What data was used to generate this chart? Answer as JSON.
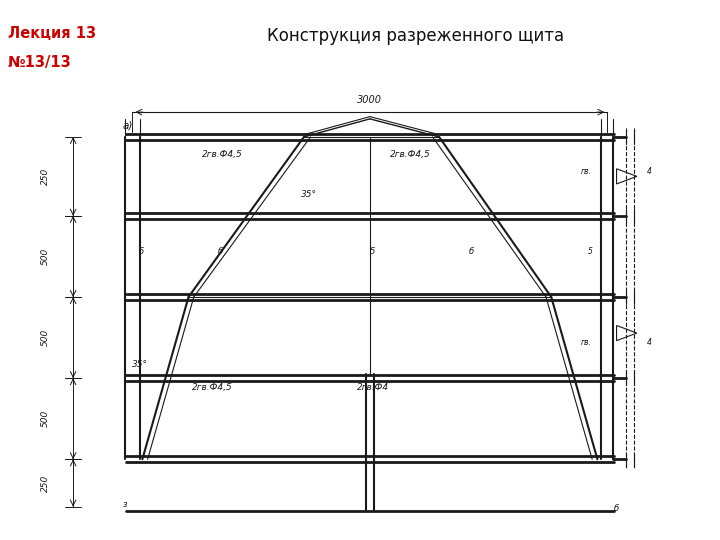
{
  "title": "Конструкция разреженного щита",
  "lecture_line1": "Лекция 13",
  "lecture_line2": "№13/13",
  "lecture_bg": "#f5f0e0",
  "lecture_fg": "#cc0000",
  "title_bg": "#55eeff",
  "title_fg": "#111111",
  "page_bg": "#ffffff",
  "drawing_bg": "#c8c5b5",
  "dim_labels": [
    "250",
    "500",
    "500",
    "500",
    "250"
  ]
}
